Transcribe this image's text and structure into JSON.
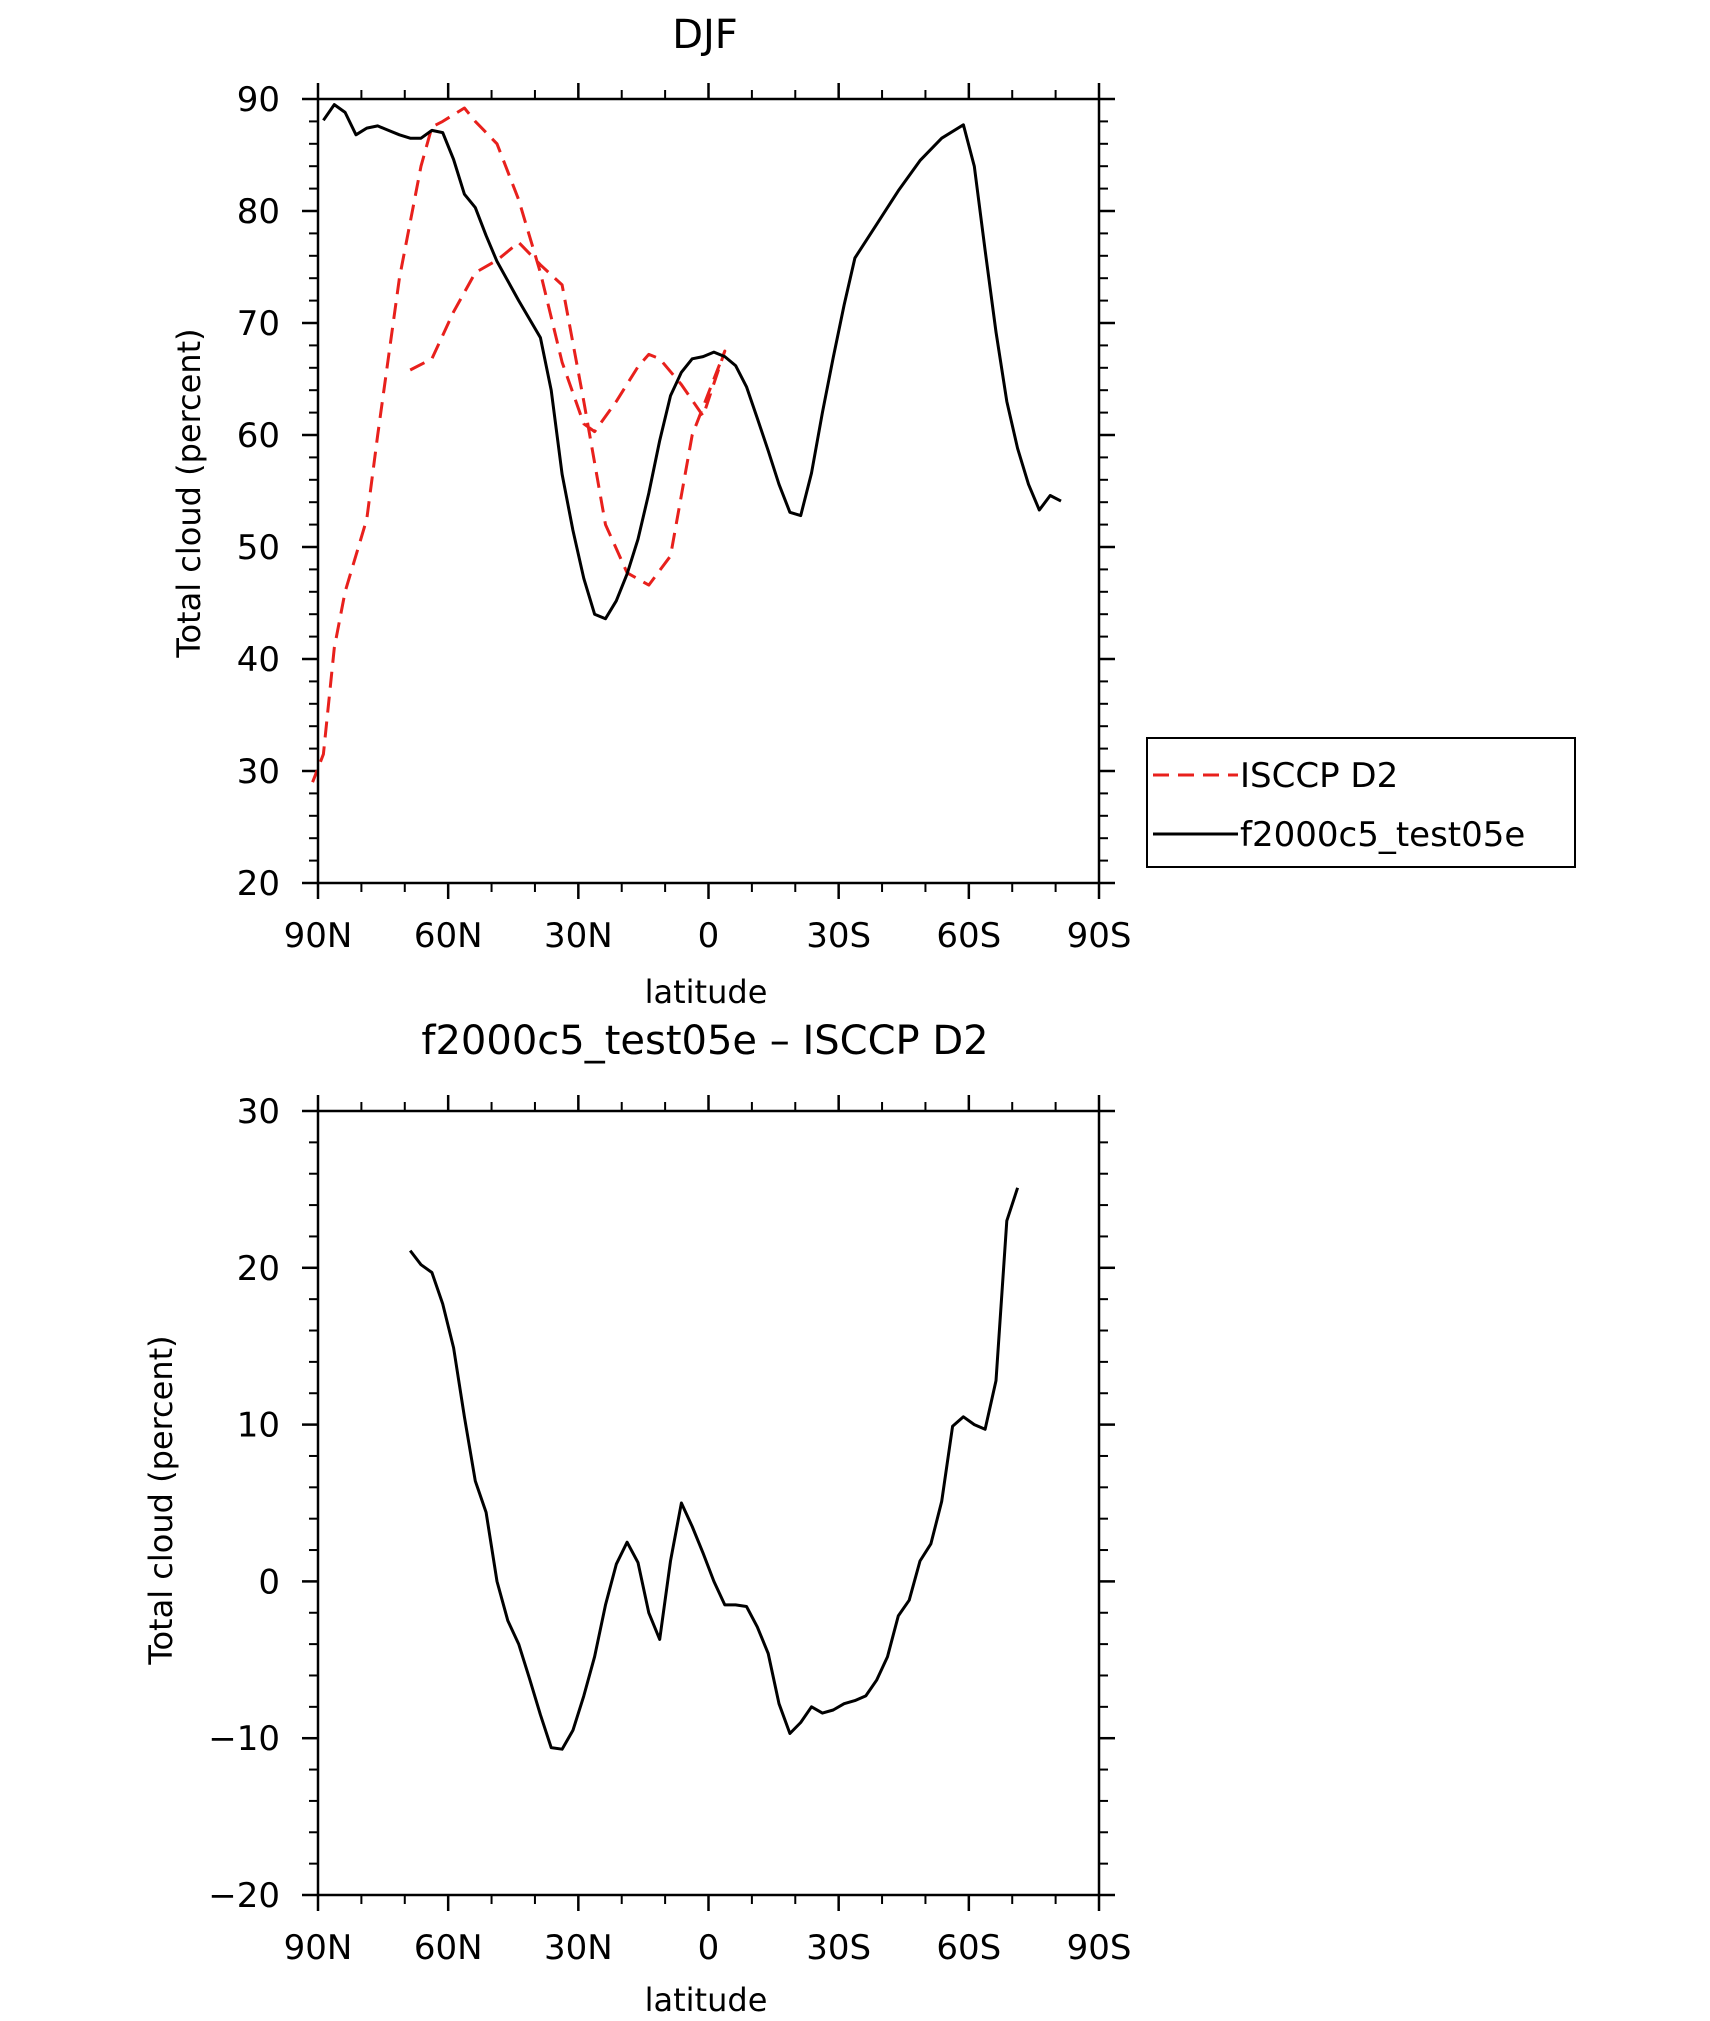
{
  "chart_data": [
    {
      "type": "line",
      "title": "DJF",
      "xlabel": "latitude",
      "ylabel": "Total cloud (percent)",
      "xlim": [
        90,
        -90
      ],
      "ylim": [
        20,
        90
      ],
      "x_ticks": [
        90,
        60,
        30,
        0,
        -30,
        -60,
        -90
      ],
      "x_tick_labels": [
        "90N",
        "60N",
        "30N",
        "0",
        "30S",
        "60S",
        "90S"
      ],
      "y_ticks": [
        20,
        30,
        40,
        50,
        60,
        70,
        80,
        90
      ],
      "y_tick_labels": [
        "20",
        "30",
        "40",
        "50",
        "60",
        "70",
        "80",
        "90"
      ],
      "legend": {
        "placement": "outside-right"
      },
      "series": [
        {
          "name": "ISCCP D2",
          "color": "#e8201c",
          "dash": true,
          "points": [
            [
              68.75,
              65.8
            ],
            [
              63.75,
              66.8
            ],
            [
              58.75,
              71.0
            ],
            [
              53.75,
              74.5
            ],
            [
              48.75,
              75.6
            ],
            [
              43.75,
              77.2
            ],
            [
              38.75,
              75.2
            ],
            [
              33.75,
              73.4
            ],
            [
              28.75,
              63.0
            ],
            [
              23.75,
              52.0
            ],
            [
              18.75,
              47.7
            ],
            [
              13.75,
              46.6
            ],
            [
              8.75,
              49.2
            ],
            [
              3.75,
              60.0
            ],
            [
              -3.75,
              67.5
            ],
            [
              -1.25,
              64.6
            ],
            [
              1.25,
              61.7
            ],
            [
              6.25,
              64.5
            ],
            [
              11.25,
              66.8
            ],
            [
              13.75,
              67.2
            ],
            [
              16.25,
              66.1
            ],
            [
              21.25,
              63.0
            ],
            [
              26.25,
              60.3
            ],
            [
              28.75,
              61.0
            ],
            [
              33.75,
              66.5
            ],
            [
              38.75,
              74.5
            ],
            [
              43.75,
              81.0
            ],
            [
              48.75,
              86.0
            ],
            [
              53.75,
              88.0
            ],
            [
              56.25,
              89.2
            ],
            [
              61.25,
              88.0
            ],
            [
              63.75,
              87.5
            ],
            [
              66.25,
              84.0
            ],
            [
              71.25,
              74.0
            ],
            [
              76.25,
              60.0
            ],
            [
              78.75,
              52.5
            ],
            [
              83.75,
              46.0
            ],
            [
              86.25,
              41.0
            ],
            [
              88.75,
              31.5
            ],
            [
              91.25,
              29.0
            ]
          ]
        },
        {
          "name": "f2000c5_test05e",
          "color": "#000000",
          "dash": false,
          "points": [
            [
              88.75,
              88.1
            ],
            [
              86.25,
              89.5
            ],
            [
              83.75,
              88.8
            ],
            [
              81.25,
              86.8
            ],
            [
              78.75,
              87.4
            ],
            [
              76.25,
              87.6
            ],
            [
              73.75,
              87.2
            ],
            [
              71.25,
              86.8
            ],
            [
              68.75,
              86.5
            ],
            [
              66.25,
              86.5
            ],
            [
              63.75,
              87.2
            ],
            [
              61.25,
              87.0
            ],
            [
              58.75,
              84.6
            ],
            [
              56.25,
              81.5
            ],
            [
              53.75,
              80.3
            ],
            [
              51.25,
              77.8
            ],
            [
              48.75,
              75.5
            ],
            [
              43.75,
              72.0
            ],
            [
              38.75,
              68.7
            ],
            [
              36.25,
              64.0
            ],
            [
              33.75,
              56.5
            ],
            [
              31.25,
              51.5
            ],
            [
              28.75,
              47.2
            ],
            [
              26.25,
              44.0
            ],
            [
              23.75,
              43.6
            ],
            [
              21.25,
              45.2
            ],
            [
              18.75,
              47.6
            ],
            [
              16.25,
              50.7
            ],
            [
              13.75,
              54.8
            ],
            [
              11.25,
              59.5
            ],
            [
              8.75,
              63.5
            ],
            [
              6.25,
              65.6
            ],
            [
              3.75,
              66.8
            ],
            [
              1.25,
              67.0
            ],
            [
              -1.25,
              67.4
            ],
            [
              -3.75,
              67.0
            ],
            [
              -6.25,
              66.2
            ],
            [
              -8.75,
              64.3
            ],
            [
              -11.25,
              61.5
            ],
            [
              -13.75,
              58.6
            ],
            [
              -16.25,
              55.6
            ],
            [
              -18.75,
              53.1
            ],
            [
              -21.25,
              52.8
            ],
            [
              -23.75,
              56.6
            ],
            [
              -26.25,
              62.0
            ],
            [
              -28.75,
              66.9
            ],
            [
              -31.25,
              71.6
            ],
            [
              -33.75,
              75.8
            ],
            [
              -38.75,
              78.8
            ],
            [
              -43.75,
              81.8
            ],
            [
              -48.75,
              84.5
            ],
            [
              -53.75,
              86.5
            ],
            [
              -58.75,
              87.7
            ],
            [
              -61.25,
              84.0
            ],
            [
              -63.75,
              76.5
            ],
            [
              -66.25,
              69.2
            ],
            [
              -68.75,
              63.0
            ],
            [
              -71.25,
              58.8
            ],
            [
              -73.75,
              55.6
            ],
            [
              -76.25,
              53.3
            ],
            [
              -78.75,
              54.6
            ],
            [
              -81.25,
              54.1
            ]
          ]
        }
      ]
    },
    {
      "type": "line",
      "title": "f2000c5_test05e – ISCCP D2",
      "xlabel": "latitude",
      "ylabel": "Total cloud (percent)",
      "xlim": [
        90,
        -90
      ],
      "ylim": [
        -20,
        30
      ],
      "x_ticks": [
        90,
        60,
        30,
        0,
        -30,
        -60,
        -90
      ],
      "x_tick_labels": [
        "90N",
        "60N",
        "30N",
        "0",
        "30S",
        "60S",
        "90S"
      ],
      "y_ticks": [
        -20,
        -10,
        0,
        10,
        20,
        30
      ],
      "y_tick_labels": [
        "−20",
        "−10",
        "0",
        "10",
        "20",
        "30"
      ],
      "series": [
        {
          "color": "#000000",
          "dash": false,
          "points": [
            [
              68.75,
              21.1
            ],
            [
              66.25,
              20.2
            ],
            [
              63.75,
              19.7
            ],
            [
              61.25,
              17.7
            ],
            [
              58.75,
              14.9
            ],
            [
              56.25,
              10.5
            ],
            [
              53.75,
              6.4
            ],
            [
              51.25,
              4.4
            ],
            [
              48.75,
              0.0
            ],
            [
              46.25,
              -2.5
            ],
            [
              43.75,
              -4.0
            ],
            [
              41.25,
              -6.2
            ],
            [
              38.75,
              -8.5
            ],
            [
              36.25,
              -10.6
            ],
            [
              33.75,
              -10.7
            ],
            [
              31.25,
              -9.5
            ],
            [
              28.75,
              -7.3
            ],
            [
              26.25,
              -4.8
            ],
            [
              23.75,
              -1.5
            ],
            [
              21.25,
              1.1
            ],
            [
              18.75,
              2.5
            ],
            [
              16.25,
              1.2
            ],
            [
              13.75,
              -2.0
            ],
            [
              11.25,
              -3.7
            ],
            [
              8.75,
              1.3
            ],
            [
              6.25,
              5.0
            ],
            [
              3.75,
              3.5
            ],
            [
              1.25,
              1.8
            ],
            [
              -1.25,
              0.0
            ],
            [
              -3.75,
              -1.5
            ],
            [
              -6.25,
              -1.5
            ],
            [
              -8.75,
              -1.6
            ],
            [
              -11.25,
              -2.9
            ],
            [
              -13.75,
              -4.6
            ],
            [
              -16.25,
              -7.8
            ],
            [
              -18.75,
              -9.7
            ],
            [
              -21.25,
              -9.0
            ],
            [
              -23.75,
              -8.0
            ],
            [
              -26.25,
              -8.4
            ],
            [
              -28.75,
              -8.2
            ],
            [
              -31.25,
              -7.8
            ],
            [
              -33.75,
              -7.6
            ],
            [
              -36.25,
              -7.3
            ],
            [
              -38.75,
              -6.3
            ],
            [
              -41.25,
              -4.8
            ],
            [
              -43.75,
              -2.2
            ],
            [
              -46.25,
              -1.2
            ],
            [
              -48.75,
              1.3
            ],
            [
              -51.25,
              2.4
            ],
            [
              -53.75,
              5.1
            ],
            [
              -56.25,
              9.9
            ],
            [
              -58.75,
              10.5
            ],
            [
              -61.25,
              10.0
            ],
            [
              -63.75,
              9.7
            ],
            [
              -66.25,
              12.8
            ],
            [
              -68.75,
              23.0
            ],
            [
              -71.25,
              25.1
            ]
          ]
        }
      ]
    }
  ]
}
